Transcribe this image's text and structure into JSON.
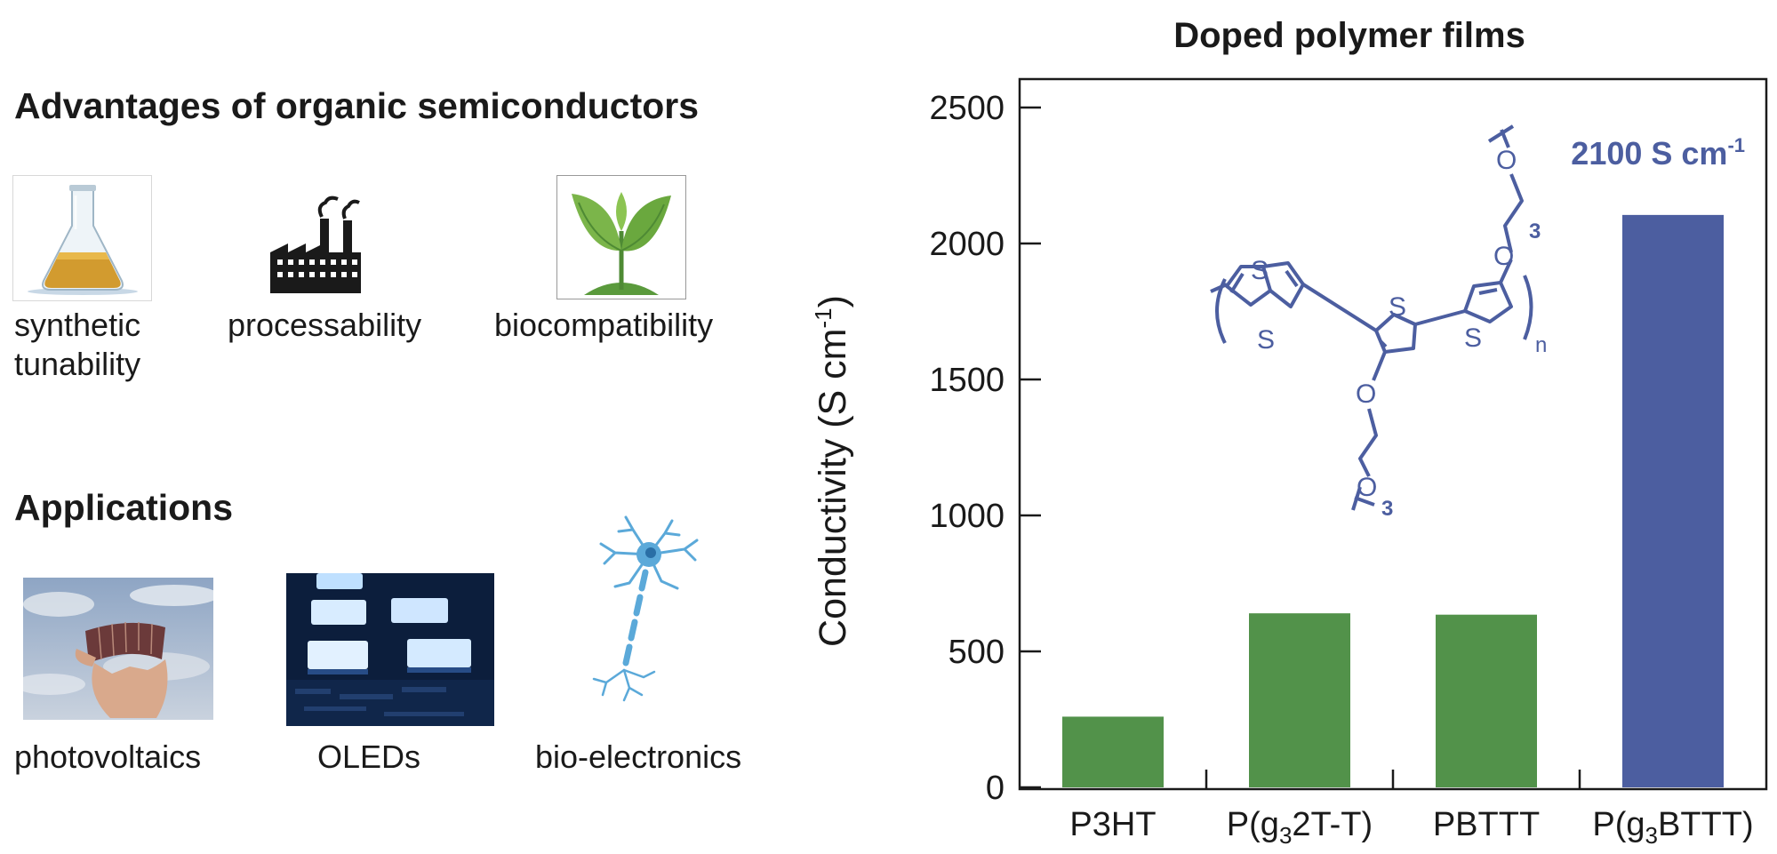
{
  "left_panel": {
    "advantages": {
      "title": "Advantages of organic semiconductors",
      "items": [
        {
          "label": "synthetic\ntunability",
          "icon": "flask-icon"
        },
        {
          "label": "processability",
          "icon": "factory-icon"
        },
        {
          "label": "biocompatibility",
          "icon": "sprout-icon"
        }
      ]
    },
    "applications": {
      "title": "Applications",
      "items": [
        {
          "label": "photovoltaics",
          "icon": "flexible-solar-cell-photo"
        },
        {
          "label": "OLEDs",
          "icon": "oled-panel-photo"
        },
        {
          "label": "bio-electronics",
          "icon": "neuron-icon"
        }
      ]
    }
  },
  "chart_data": {
    "type": "bar",
    "title": "Doped polymer films",
    "ylabel": "Conductivity (S cm-1)",
    "xlabel": "",
    "ylim": [
      0,
      2500
    ],
    "yticks": [
      0,
      500,
      1000,
      1500,
      2000,
      2500
    ],
    "categories": [
      "P3HT",
      "P(g32T-T)",
      "PBTTT",
      "P(g3BTTT)"
    ],
    "values": [
      260,
      640,
      635,
      2105
    ],
    "bar_colors": [
      "#52924a",
      "#52924a",
      "#52924a",
      "#4c5ea0"
    ],
    "annotation": "2100 S cm-1",
    "grid": false
  },
  "structure": {
    "color": "#4c5ea0",
    "atom_s": "S",
    "atom_o": "O",
    "subscript_n": "n",
    "subscript_3": "3"
  },
  "colors": {
    "green_bar": "#52924a",
    "blue_bar": "#4c5ea0",
    "text": "#1a1a1a"
  }
}
